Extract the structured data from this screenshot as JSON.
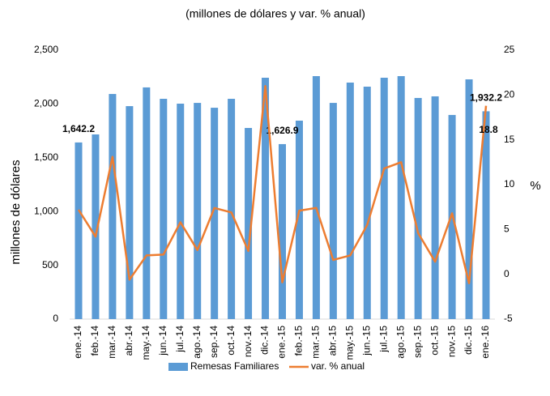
{
  "chart_data": {
    "type": "bar-line",
    "title": "(millones de dólares y var. % anual)",
    "ylabel": "millones de dólares",
    "y2label": "%",
    "categories": [
      "ene.-14",
      "feb.-14",
      "mar.-14",
      "abr.-14",
      "may.-14",
      "jun.-14",
      "jul.-14",
      "ago.-14",
      "sep.-14",
      "oct.-14",
      "nov.-14",
      "dic.-14",
      "ene.-15",
      "feb.-15",
      "mar.-15",
      "abr.-15",
      "may.-15",
      "jun.-15",
      "jul.-15",
      "ago.-15",
      "sep.-15",
      "oct.-15",
      "nov.-15",
      "dic.-15",
      "ene.-16"
    ],
    "series": [
      {
        "name": "Remesas Familiares",
        "type": "bar",
        "color": "#5b9bd5",
        "values": [
          1642.2,
          1717,
          2093,
          1980,
          2154,
          2048,
          2003,
          2010,
          1965,
          2048,
          1777,
          2244,
          1626.9,
          1845,
          2259,
          2010,
          2199,
          2161,
          2244,
          2259,
          2056,
          2071,
          1898,
          2229,
          1932.2
        ],
        "value_labels": [
          "1,642.2",
          null,
          null,
          null,
          null,
          null,
          null,
          null,
          null,
          null,
          null,
          null,
          "1,626.9",
          null,
          null,
          null,
          null,
          null,
          null,
          null,
          null,
          null,
          null,
          null,
          "1,932.2"
        ]
      },
      {
        "name": "var. % anual",
        "type": "line",
        "axis": "y2",
        "color": "#ed7d31",
        "values": [
          7.2,
          4.2,
          13.1,
          -0.6,
          2.1,
          2.2,
          5.8,
          2.7,
          7.4,
          6.9,
          2.6,
          21.0,
          -0.9,
          7.1,
          7.4,
          1.6,
          2.1,
          5.5,
          11.8,
          12.5,
          4.6,
          1.4,
          6.8,
          -1.0,
          18.8
        ],
        "value_labels": [
          null,
          null,
          null,
          null,
          null,
          null,
          null,
          null,
          null,
          null,
          null,
          null,
          null,
          null,
          null,
          null,
          null,
          null,
          null,
          null,
          null,
          null,
          null,
          null,
          "18.8"
        ]
      }
    ],
    "ylim": [
      0,
      2500
    ],
    "yticks": [
      0,
      500,
      {
        "value": 1000,
        "label": "1,000"
      },
      {
        "value": 1500,
        "label": "1,500"
      },
      {
        "value": 2000,
        "label": "2,000"
      },
      {
        "value": 2500,
        "label": "2,500"
      }
    ],
    "y2lim": [
      -5,
      25
    ],
    "y2ticks": [
      -5,
      0,
      5,
      10,
      15,
      20,
      25
    ],
    "grid": false,
    "legend": "bottom"
  }
}
